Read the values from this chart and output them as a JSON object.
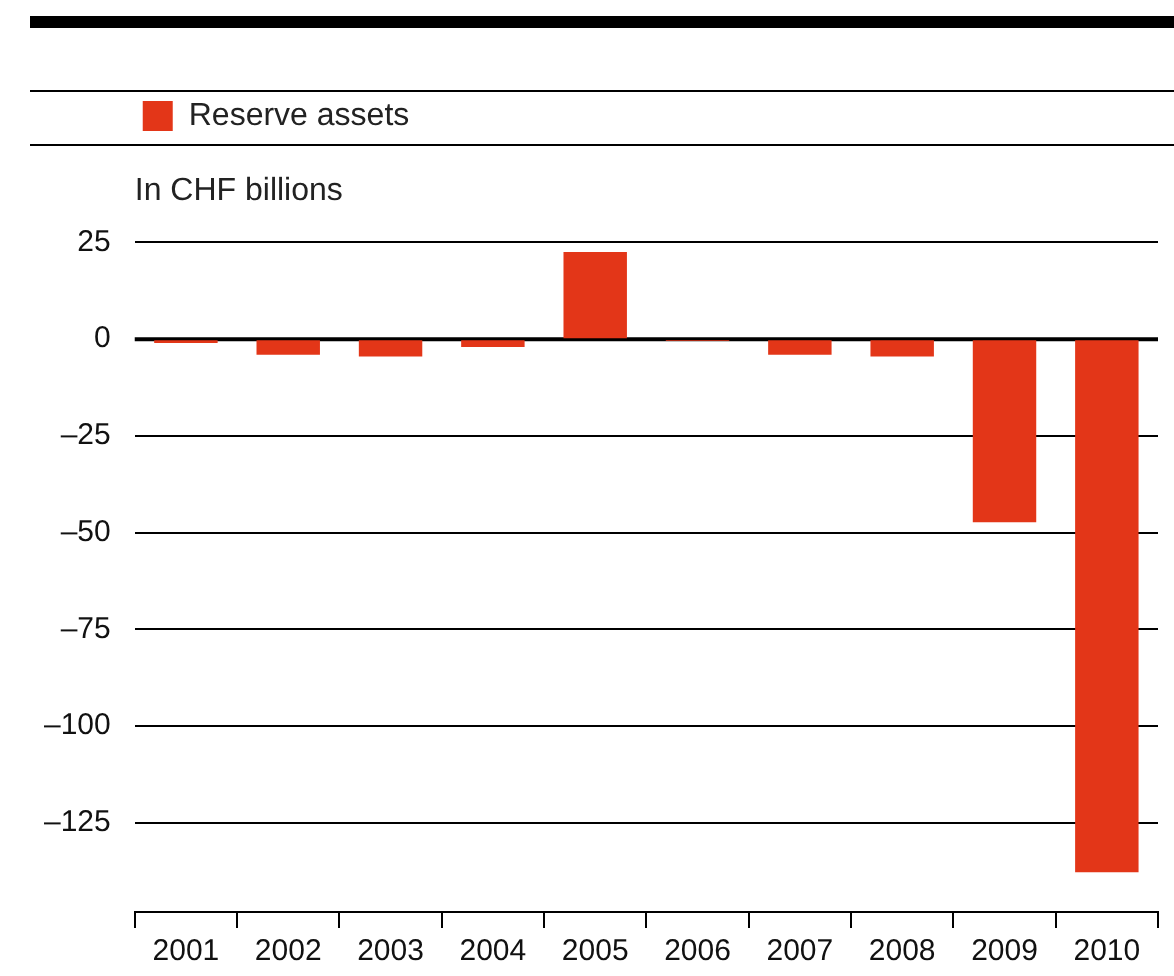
{
  "chart_data": {
    "type": "bar",
    "ylabel": "In CHF billions",
    "categories": [
      "2001",
      "2002",
      "2003",
      "2004",
      "2005",
      "2006",
      "2007",
      "2008",
      "2009",
      "2010"
    ],
    "series": [
      {
        "name": "Reserve assets",
        "color": "#e33618",
        "values": [
          -1,
          -4,
          -4.5,
          -2,
          22.5,
          -0.5,
          -4,
          -4.5,
          -47.3,
          -137.7
        ]
      }
    ],
    "ylim": [
      -148,
      25
    ],
    "yticks": [
      {
        "value": -125,
        "label": "–125"
      },
      {
        "value": -100,
        "label": "–100"
      },
      {
        "value": -75,
        "label": "–75"
      },
      {
        "value": -50,
        "label": "–50"
      },
      {
        "value": -25,
        "label": "–25"
      },
      0,
      25
    ],
    "grid": "y",
    "legend": "top left"
  }
}
